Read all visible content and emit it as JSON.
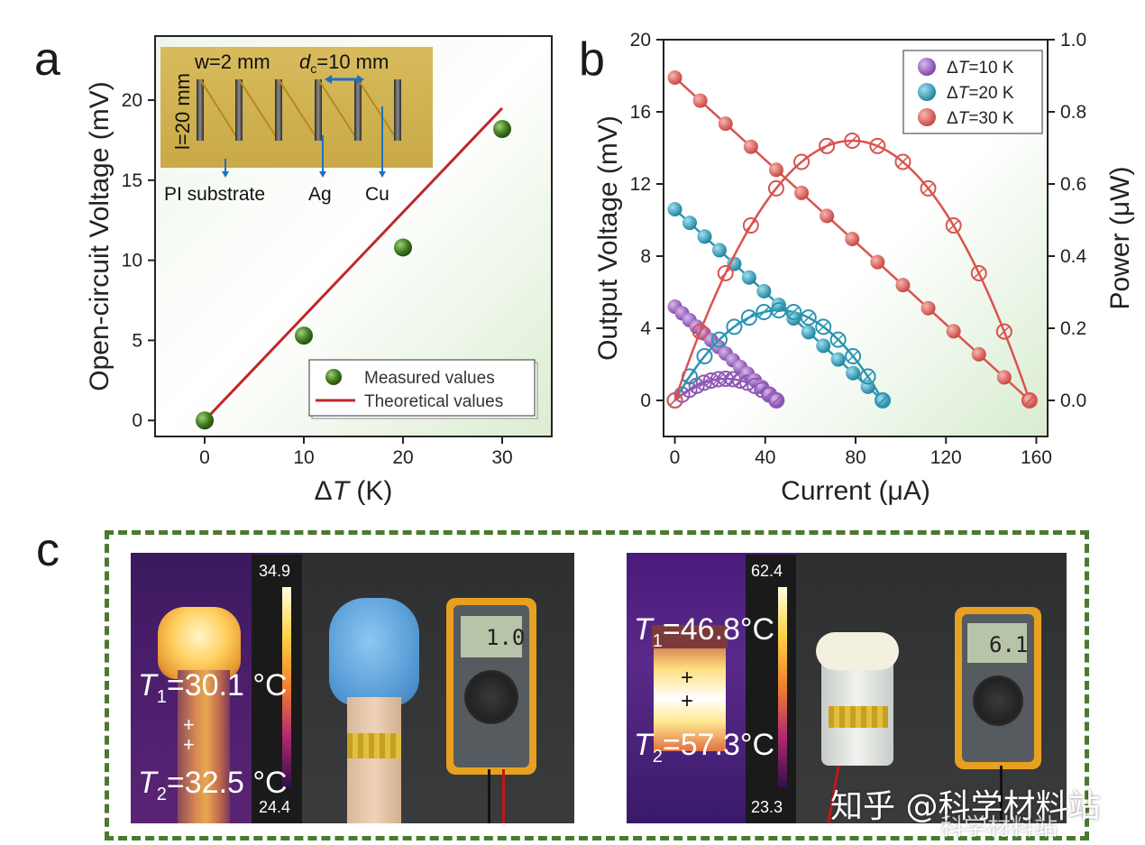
{
  "panel_a": {
    "letter": "a",
    "inset": {
      "w_label": "w=2 mm",
      "dc_label": "d",
      "dc_sub": "c",
      "dc_value": "=10 mm",
      "l_label": "l=20 mm",
      "pi_label": "PI substrate",
      "ag_label": "Ag",
      "cu_label": "Cu"
    }
  },
  "panel_b": {
    "letter": "b"
  },
  "panel_c": {
    "letter": "c",
    "left": {
      "scale_max": "34.9",
      "scale_min": "24.4",
      "t1": "T",
      "t1_sub": "1",
      "t1_val": "=30.1 °C",
      "t2": "T",
      "t2_sub": "2",
      "t2_val": "=32.5 °C",
      "meter_reading": "1.0"
    },
    "right": {
      "scale_max": "62.4",
      "scale_min": "23.3",
      "t1": "T",
      "t1_sub": "1",
      "t1_val": "=46.8°C",
      "t2": "T",
      "t2_sub": "2",
      "t2_val": "=57.3°C",
      "meter_reading": "6.1"
    },
    "watermark_1": "知乎 @科学材料站",
    "watermark_2": "科学材料站"
  },
  "chart_data": [
    {
      "id": "a",
      "type": "scatter",
      "title": "",
      "xlabel": "ΔT (K)",
      "ylabel": "Open-circuit Voltage (mV)",
      "xlim": [
        -5,
        35
      ],
      "ylim": [
        -1,
        24
      ],
      "xticks": [
        0,
        10,
        20,
        30
      ],
      "yticks": [
        0,
        5,
        10,
        15,
        20
      ],
      "series": [
        {
          "name": "Measured values",
          "kind": "scatter",
          "color": "#3f7a1e",
          "x": [
            0,
            10,
            20,
            30
          ],
          "y": [
            0,
            5.3,
            10.8,
            18.2
          ]
        },
        {
          "name": "Theoretical values",
          "kind": "line",
          "color": "#c0272d",
          "x": [
            0,
            30
          ],
          "y": [
            0,
            19.5
          ]
        }
      ],
      "legend_position": "bottom-right"
    },
    {
      "id": "b",
      "type": "line",
      "xlabel": "Current (μA)",
      "ylabel": "Output Voltage (mV)",
      "y2label": "Power (μW)",
      "xlim": [
        -5,
        165
      ],
      "ylim": [
        -2,
        20
      ],
      "y2lim": [
        -0.1,
        1.0
      ],
      "xticks": [
        0,
        40,
        80,
        120,
        160
      ],
      "yticks": [
        0,
        4,
        8,
        12,
        16,
        20
      ],
      "y2ticks": [
        "0.0",
        "0.2",
        "0.4",
        "0.6",
        "0.8",
        "1.0"
      ],
      "series": [
        {
          "name": "ΔT=10 K",
          "dT": "10",
          "color": "#8e59b3",
          "isc": 45,
          "voc": 5.2,
          "pmax": 0.06
        },
        {
          "name": "ΔT=20 K",
          "dT": "20",
          "color": "#2a95b2",
          "isc": 92,
          "voc": 10.6,
          "pmax": 0.25
        },
        {
          "name": "ΔT=30 K",
          "dT": "30",
          "color": "#d9534f",
          "isc": 157,
          "voc": 17.9,
          "pmax": 0.72
        }
      ],
      "legend_position": "top-right"
    }
  ]
}
